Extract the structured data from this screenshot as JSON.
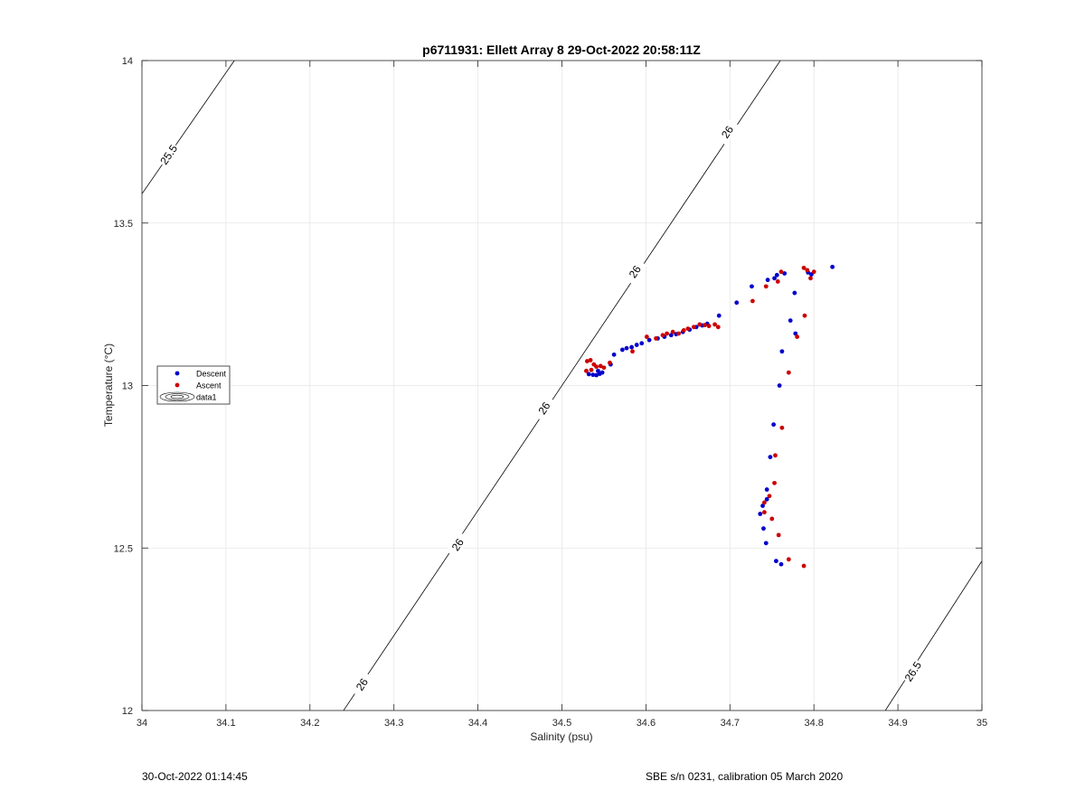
{
  "chart_data": {
    "type": "scatter",
    "title": "p6711931: Ellett Array 8 29-Oct-2022 20:58:11Z",
    "xlabel": "Salinity (psu)",
    "ylabel": "Temperature (°C)",
    "xlim": [
      34,
      35
    ],
    "ylim": [
      12,
      14
    ],
    "xticks": [
      "34",
      "34.1",
      "34.2",
      "34.3",
      "34.4",
      "34.5",
      "34.6",
      "34.7",
      "34.8",
      "34.9",
      "35"
    ],
    "yticks": [
      "12",
      "12.5",
      "13",
      "13.5",
      "14"
    ],
    "grid": true,
    "legend": {
      "position": "left-middle",
      "entries": [
        "Descent",
        "Ascent",
        "data1"
      ]
    },
    "colors": {
      "Descent": "#0000cc",
      "Ascent": "#cc0000",
      "contour": "#000000"
    },
    "contours": [
      {
        "label": "25.5",
        "points": [
          [
            34.0,
            13.59
          ],
          [
            34.11,
            14.0
          ]
        ],
        "label_at": [
          [
            34.032,
            13.71
          ]
        ]
      },
      {
        "label": "26",
        "points": [
          [
            34.24,
            12.0
          ],
          [
            34.76,
            14.0
          ]
        ],
        "label_at": [
          [
            34.262,
            12.08
          ],
          [
            34.376,
            12.51
          ],
          [
            34.479,
            12.93
          ],
          [
            34.587,
            13.35
          ],
          [
            34.697,
            13.78
          ]
        ]
      },
      {
        "label": "26.5",
        "points": [
          [
            34.885,
            12.0
          ],
          [
            35.0,
            12.46
          ]
        ],
        "label_at": [
          [
            34.918,
            12.12
          ]
        ]
      }
    ],
    "series": [
      {
        "name": "Descent",
        "points": [
          [
            34.532,
            13.035
          ],
          [
            34.537,
            13.033
          ],
          [
            34.541,
            13.032
          ],
          [
            34.545,
            13.036
          ],
          [
            34.548,
            13.04
          ],
          [
            34.543,
            13.045
          ],
          [
            34.558,
            13.065
          ],
          [
            34.562,
            13.095
          ],
          [
            34.572,
            13.11
          ],
          [
            34.577,
            13.115
          ],
          [
            34.583,
            13.118
          ],
          [
            34.589,
            13.125
          ],
          [
            34.595,
            13.13
          ],
          [
            34.604,
            13.14
          ],
          [
            34.614,
            13.145
          ],
          [
            34.622,
            13.15
          ],
          [
            34.63,
            13.155
          ],
          [
            34.636,
            13.158
          ],
          [
            34.644,
            13.165
          ],
          [
            34.652,
            13.172
          ],
          [
            34.66,
            13.18
          ],
          [
            34.667,
            13.185
          ],
          [
            34.673,
            13.19
          ],
          [
            34.687,
            13.215
          ],
          [
            34.708,
            13.255
          ],
          [
            34.726,
            13.305
          ],
          [
            34.745,
            13.325
          ],
          [
            34.753,
            13.33
          ],
          [
            34.756,
            13.34
          ],
          [
            34.765,
            13.345
          ],
          [
            34.793,
            13.348
          ],
          [
            34.797,
            13.342
          ],
          [
            34.822,
            13.365
          ],
          [
            34.777,
            13.285
          ],
          [
            34.772,
            13.2
          ],
          [
            34.778,
            13.16
          ],
          [
            34.762,
            13.105
          ],
          [
            34.759,
            13.0
          ],
          [
            34.752,
            12.88
          ],
          [
            34.748,
            12.78
          ],
          [
            34.744,
            12.68
          ],
          [
            34.744,
            12.65
          ],
          [
            34.739,
            12.63
          ],
          [
            34.736,
            12.605
          ],
          [
            34.74,
            12.56
          ],
          [
            34.743,
            12.515
          ],
          [
            34.755,
            12.46
          ],
          [
            34.761,
            12.45
          ]
        ]
      },
      {
        "name": "Ascent",
        "points": [
          [
            34.53,
            13.075
          ],
          [
            34.534,
            13.078
          ],
          [
            34.538,
            13.065
          ],
          [
            34.541,
            13.058
          ],
          [
            34.546,
            13.06
          ],
          [
            34.55,
            13.055
          ],
          [
            34.535,
            13.048
          ],
          [
            34.529,
            13.045
          ],
          [
            34.557,
            13.07
          ],
          [
            34.584,
            13.105
          ],
          [
            34.601,
            13.15
          ],
          [
            34.612,
            13.145
          ],
          [
            34.62,
            13.155
          ],
          [
            34.625,
            13.16
          ],
          [
            34.632,
            13.165
          ],
          [
            34.639,
            13.16
          ],
          [
            34.645,
            13.17
          ],
          [
            34.65,
            13.175
          ],
          [
            34.657,
            13.18
          ],
          [
            34.664,
            13.188
          ],
          [
            34.67,
            13.186
          ],
          [
            34.675,
            13.183
          ],
          [
            34.682,
            13.188
          ],
          [
            34.686,
            13.18
          ],
          [
            34.727,
            13.26
          ],
          [
            34.743,
            13.305
          ],
          [
            34.757,
            13.32
          ],
          [
            34.761,
            13.35
          ],
          [
            34.788,
            13.362
          ],
          [
            34.792,
            13.355
          ],
          [
            34.796,
            13.33
          ],
          [
            34.8,
            13.35
          ],
          [
            34.789,
            13.215
          ],
          [
            34.78,
            13.15
          ],
          [
            34.77,
            13.04
          ],
          [
            34.762,
            12.87
          ],
          [
            34.754,
            12.785
          ],
          [
            34.753,
            12.7
          ],
          [
            34.747,
            12.66
          ],
          [
            34.741,
            12.64
          ],
          [
            34.741,
            12.61
          ],
          [
            34.75,
            12.59
          ],
          [
            34.758,
            12.54
          ],
          [
            34.77,
            12.465
          ],
          [
            34.788,
            12.445
          ]
        ]
      }
    ]
  },
  "footer": {
    "timestamp": "30-Oct-2022 01:14:45",
    "calibration": "SBE s/n 0231, calibration 05 March 2020"
  }
}
